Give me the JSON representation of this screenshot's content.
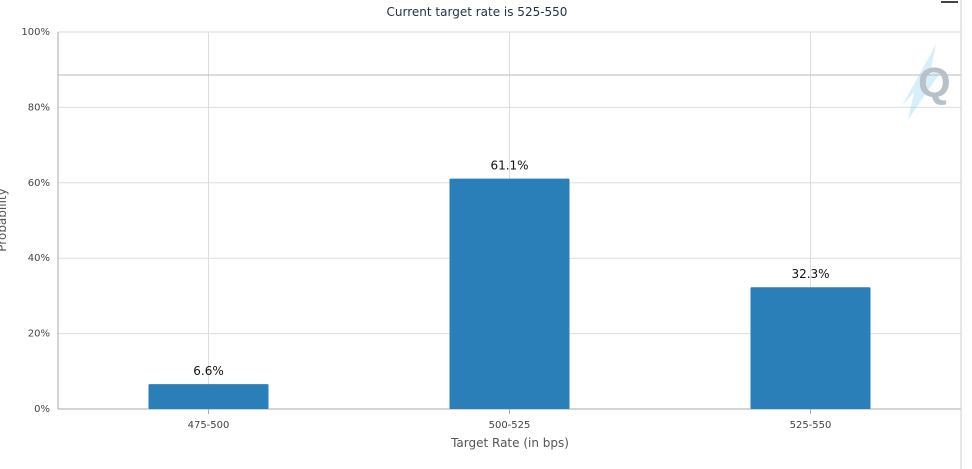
{
  "chart_data": {
    "type": "bar",
    "title": "Current target rate is 525-550",
    "xlabel": "Target Rate (in bps)",
    "ylabel": "Probability",
    "categories": [
      "475-500",
      "500-525",
      "525-550"
    ],
    "values": [
      6.6,
      61.1,
      32.3
    ],
    "value_labels": [
      "6.6%",
      "61.1%",
      "32.3%"
    ],
    "ylim": [
      0,
      100
    ],
    "yticks": [
      0,
      20,
      40,
      60,
      80,
      100
    ],
    "ytick_labels": [
      "0%",
      "20%",
      "40%",
      "60%",
      "80%",
      "100%"
    ],
    "grid": true,
    "bar_color": "#2a7fb8"
  },
  "watermark": {
    "letter": "Q",
    "color": "#b8c0c8",
    "accent": "#8fd0f0"
  }
}
